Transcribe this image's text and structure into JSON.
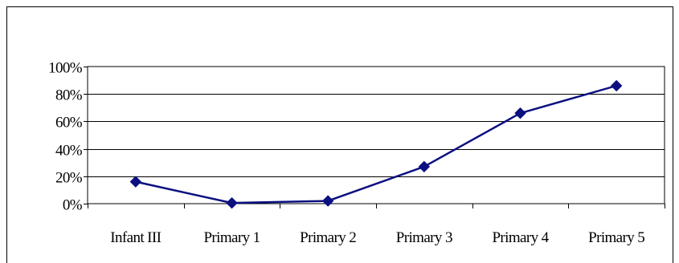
{
  "chart_data": {
    "type": "line",
    "categories": [
      "Infant III",
      "Primary 1",
      "Primary 2",
      "Primary 3",
      "Primary 4",
      "Primary 5"
    ],
    "series": [
      {
        "values": [
          16,
          0.5,
          2,
          27,
          66,
          86
        ],
        "color": "#0b0f80"
      }
    ],
    "yticks": [
      "0%",
      "20%",
      "40%",
      "60%",
      "80%",
      "100%"
    ],
    "ylim": [
      0,
      100
    ],
    "grid": true,
    "legend": "none",
    "marker": "diamond"
  }
}
